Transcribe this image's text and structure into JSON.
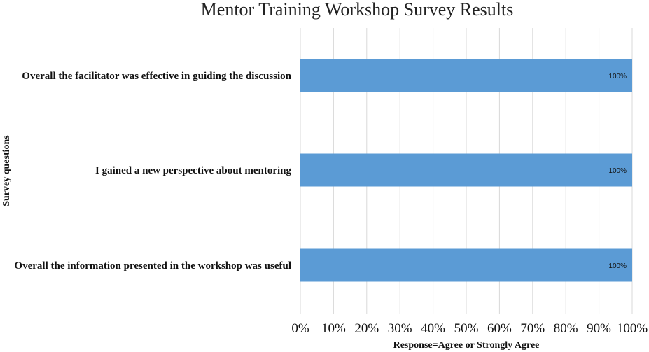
{
  "chart_data": {
    "type": "bar",
    "orientation": "horizontal",
    "title": "Mentor Training Workshop Survey Results",
    "xlabel": "Response=Agree or Strongly Agree",
    "ylabel": "Survey questions",
    "categories": [
      "Overall the facilitator was effective in guiding the discussion",
      "I gained a new perspective about mentoring",
      "Overall the information presented in the workshop was useful"
    ],
    "values": [
      100,
      100,
      100
    ],
    "data_labels": [
      "100%",
      "100%",
      "100%"
    ],
    "xlim": [
      0,
      100
    ],
    "xticks": [
      "0%",
      "10%",
      "20%",
      "30%",
      "40%",
      "50%",
      "60%",
      "70%",
      "80%",
      "90%",
      "100%"
    ],
    "grid": "vertical",
    "bar_color": "#5b9bd5",
    "grid_color": "#d9d9d9"
  }
}
